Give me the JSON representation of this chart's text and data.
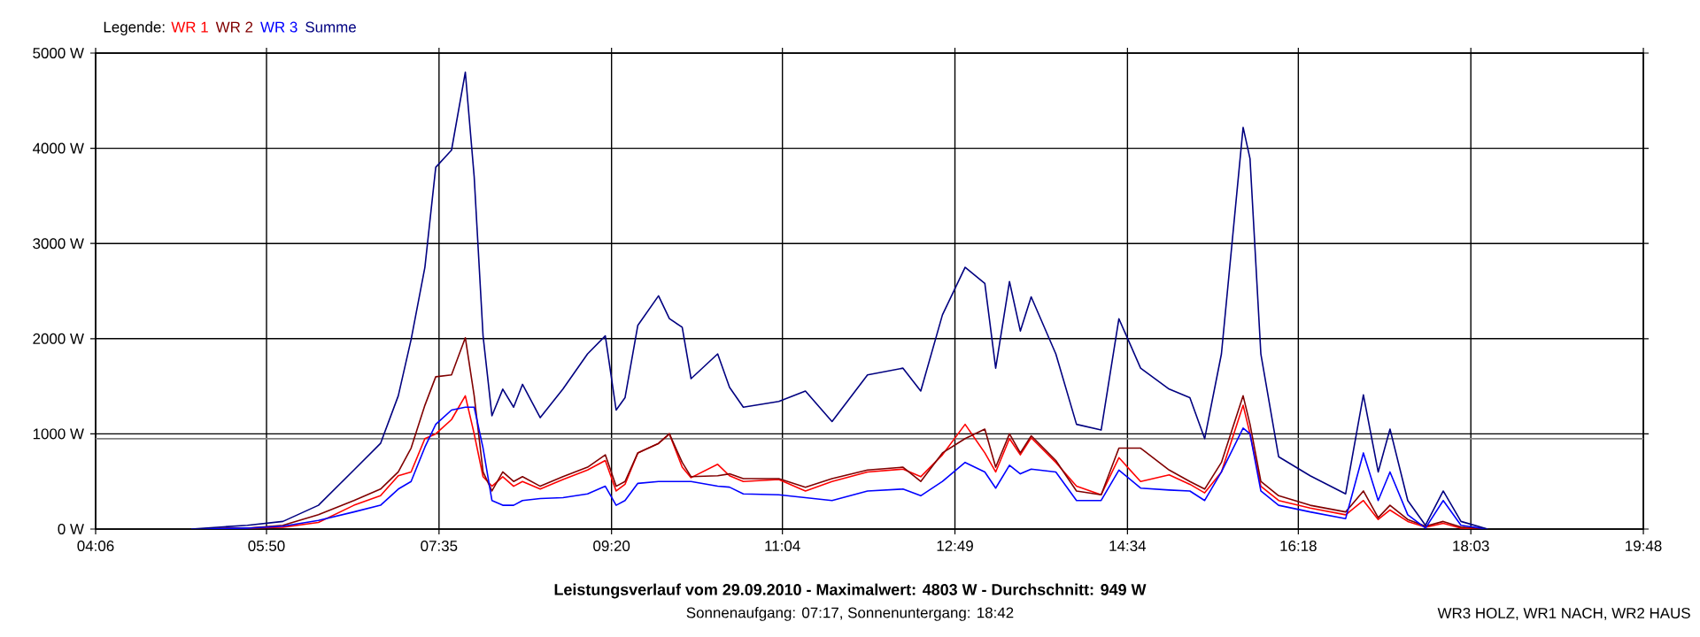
{
  "chart_data": {
    "type": "line",
    "title": "Leistungsverlauf vom 29.09.2010 - Maximalwert: 4803 W - Durchschnitt: 949 W",
    "subtitle": "Sonnenaufgang: 07:17, Sonnenuntergang: 18:42",
    "annotations": [
      "WR3 HOLZ, WR1 NACH, WR2 HAUS"
    ],
    "legend_title": "Legende:",
    "legend": "top left",
    "grid": true,
    "x": [
      5.07,
      5.64,
      6.0,
      6.36,
      6.72,
      6.99,
      7.17,
      7.3,
      7.44,
      7.55,
      7.71,
      7.85,
      7.94,
      8.03,
      8.12,
      8.23,
      8.34,
      8.43,
      8.61,
      8.84,
      9.09,
      9.27,
      9.38,
      9.47,
      9.6,
      9.81,
      9.92,
      10.05,
      10.14,
      10.41,
      10.53,
      10.67,
      11.03,
      11.3,
      11.57,
      11.93,
      12.29,
      12.47,
      12.69,
      12.92,
      13.12,
      13.23,
      13.37,
      13.48,
      13.59,
      13.84,
      14.05,
      14.3,
      14.48,
      14.7,
      14.99,
      15.2,
      15.35,
      15.52,
      15.74,
      15.81,
      15.92,
      16.1,
      16.42,
      16.78,
      16.96,
      17.11,
      17.23,
      17.41,
      17.59,
      17.77,
      17.95,
      18.22
    ],
    "series": [
      {
        "name": "WR 1",
        "color": "#ff0000",
        "values": [
          0,
          10,
          20,
          70,
          250,
          350,
          560,
          600,
          950,
          1000,
          1150,
          1400,
          1000,
          550,
          450,
          550,
          450,
          500,
          420,
          520,
          620,
          720,
          400,
          470,
          800,
          900,
          1000,
          650,
          540,
          680,
          560,
          500,
          520,
          400,
          500,
          600,
          630,
          550,
          780,
          1100,
          800,
          600,
          950,
          780,
          960,
          700,
          450,
          360,
          750,
          500,
          570,
          470,
          380,
          600,
          1300,
          1000,
          450,
          300,
          220,
          150,
          300,
          100,
          200,
          80,
          20,
          60,
          10,
          0
        ]
      },
      {
        "name": "WR 2",
        "color": "#800000",
        "values": [
          0,
          10,
          40,
          150,
          300,
          420,
          600,
          850,
          1300,
          1600,
          1620,
          2010,
          1400,
          600,
          400,
          600,
          500,
          550,
          450,
          550,
          650,
          780,
          450,
          500,
          800,
          900,
          1000,
          700,
          550,
          560,
          580,
          530,
          530,
          440,
          530,
          620,
          650,
          500,
          800,
          950,
          1050,
          650,
          1000,
          800,
          980,
          720,
          400,
          360,
          850,
          850,
          620,
          500,
          420,
          700,
          1400,
          1100,
          500,
          350,
          250,
          180,
          400,
          120,
          250,
          100,
          30,
          80,
          20,
          0
        ]
      },
      {
        "name": "WR 3",
        "color": "#0000ff",
        "values": [
          0,
          10,
          30,
          90,
          180,
          250,
          420,
          500,
          860,
          1100,
          1250,
          1280,
          1280,
          850,
          300,
          250,
          250,
          300,
          320,
          330,
          370,
          450,
          250,
          300,
          480,
          500,
          500,
          500,
          500,
          450,
          440,
          370,
          360,
          330,
          300,
          400,
          420,
          350,
          500,
          700,
          600,
          430,
          670,
          580,
          630,
          600,
          300,
          300,
          620,
          430,
          410,
          400,
          300,
          600,
          1060,
          1000,
          400,
          250,
          180,
          110,
          800,
          300,
          600,
          150,
          10,
          300,
          40,
          0
        ]
      },
      {
        "name": "Summe",
        "color": "#000080",
        "values": [
          0,
          40,
          80,
          250,
          620,
          900,
          1400,
          1990,
          2750,
          3800,
          3980,
          4800,
          3700,
          2030,
          1190,
          1470,
          1280,
          1520,
          1170,
          1470,
          1840,
          2030,
          1250,
          1380,
          2140,
          2450,
          2210,
          2120,
          1580,
          1840,
          1490,
          1280,
          1340,
          1450,
          1130,
          1620,
          1690,
          1450,
          2250,
          2750,
          2580,
          1690,
          2600,
          2080,
          2440,
          1840,
          1100,
          1040,
          2210,
          1690,
          1470,
          1380,
          950,
          1840,
          4220,
          3890,
          1840,
          760,
          560,
          370,
          1410,
          600,
          1050,
          300,
          40,
          400,
          80,
          0
        ]
      }
    ],
    "ref_lines": [
      {
        "axis": "y",
        "value": 949,
        "color": "#808080"
      }
    ],
    "xlim": [
      4.1,
      19.8
    ],
    "xticks": [
      {
        "value": 4.1,
        "label": "04:06"
      },
      {
        "value": 5.8333,
        "label": "05:50"
      },
      {
        "value": 7.5833,
        "label": "07:35"
      },
      {
        "value": 9.3333,
        "label": "09:20"
      },
      {
        "value": 11.0667,
        "label": "11:04"
      },
      {
        "value": 12.8167,
        "label": "12:49"
      },
      {
        "value": 14.5667,
        "label": "14:34"
      },
      {
        "value": 16.3,
        "label": "16:18"
      },
      {
        "value": 18.05,
        "label": "18:03"
      },
      {
        "value": 19.8,
        "label": "19:48"
      }
    ],
    "ylim": [
      0,
      5000
    ],
    "yticks": [
      {
        "value": 0,
        "label": "0 W"
      },
      {
        "value": 1000,
        "label": "1000 W"
      },
      {
        "value": 2000,
        "label": "2000 W"
      },
      {
        "value": 3000,
        "label": "3000 W"
      },
      {
        "value": 4000,
        "label": "4000 W"
      },
      {
        "value": 5000,
        "label": "5000 W"
      }
    ]
  }
}
